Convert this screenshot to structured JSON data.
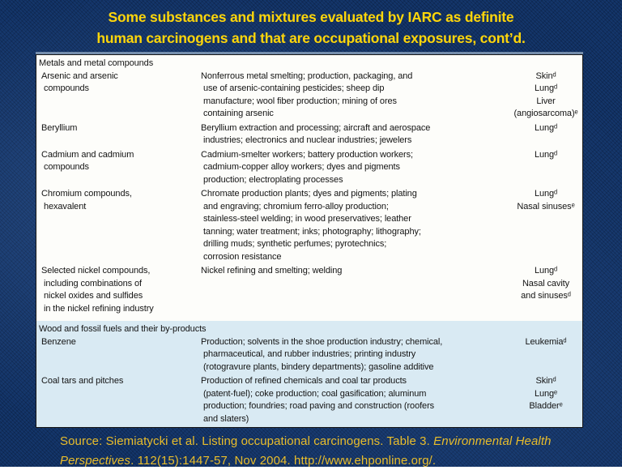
{
  "title": "Some substances and mixtures evaluated by IARC as definite\nhuman carcinogens and that are occupational exposures, cont’d.",
  "table": {
    "sections": [
      {
        "header": "Metals and metal compounds",
        "rows": [
          {
            "substance": "Arsenic and arsenic\n compounds",
            "exposures": "Nonferrous metal smelting; production, packaging, and\n use of arsenic-containing pesticides; sheep dip\n manufacture; wool fiber production; mining of ores\n containing arsenic",
            "sites": "Skinᵈ\nLungᵈ\nLiver\n(angiosarcoma)ᵉ"
          },
          {
            "substance": "Beryllium",
            "exposures": "Beryllium extraction and processing; aircraft and aerospace\n industries; electronics and nuclear industries; jewelers",
            "sites": "Lungᵈ"
          },
          {
            "substance": "Cadmium and cadmium\n compounds",
            "exposures": "Cadmium-smelter workers; battery production workers;\n cadmium-copper alloy workers; dyes and pigments\n production; electroplating processes",
            "sites": "Lungᵈ"
          },
          {
            "substance": "Chromium compounds,\n hexavalent",
            "exposures": "Chromate production plants; dyes and pigments; plating\n and engraving; chromium ferro-alloy production;\n stainless-steel welding; in wood preservatives; leather\n tanning; water treatment; inks; photography; lithography;\n drilling muds; synthetic perfumes; pyrotechnics;\n corrosion resistance",
            "sites": "Lungᵈ\nNasal sinusesᵉ"
          },
          {
            "substance": "Selected nickel compounds,\n including combinations of\n nickel oxides and sulfides\n in the nickel refining industry",
            "exposures": "Nickel refining and smelting; welding",
            "sites": "Lungᵈ\nNasal cavity\nand sinusesᵈ"
          }
        ]
      },
      {
        "header": "Wood and fossil fuels and their by-products",
        "rows": [
          {
            "substance": "Benzene",
            "exposures": "Production; solvents in the shoe production industry; chemical,\n pharmaceutical, and rubber industries; printing industry\n (rotogravure plants, bindery departments); gasoline additive",
            "sites": "Leukemiaᵈ"
          },
          {
            "substance": "Coal tars and pitches",
            "exposures": "Production of refined chemicals and coal tar products\n (patent-fuel); coke production; coal gasification; aluminum\n production; foundries; road paving and construction (roofers\n and slaters)",
            "sites": "Skinᵈ\nLungᵉ\nBladderᵉ"
          }
        ]
      }
    ]
  },
  "source": {
    "prefix": "Source: Siemiatycki et al. Listing occupational carcinogens. Table 3. ",
    "journal_italic": "Environmental Health Perspectives",
    "suffix": ". 112(15):1447-57, Nov 2004. http://www.ehponline.org/."
  },
  "colors": {
    "background_navy": "#14366b",
    "title_yellow": "#ffd60a",
    "source_gold": "#e9bd2b",
    "table_white": "#fdfdfa",
    "section_band_blue": "#d9eaf3"
  }
}
